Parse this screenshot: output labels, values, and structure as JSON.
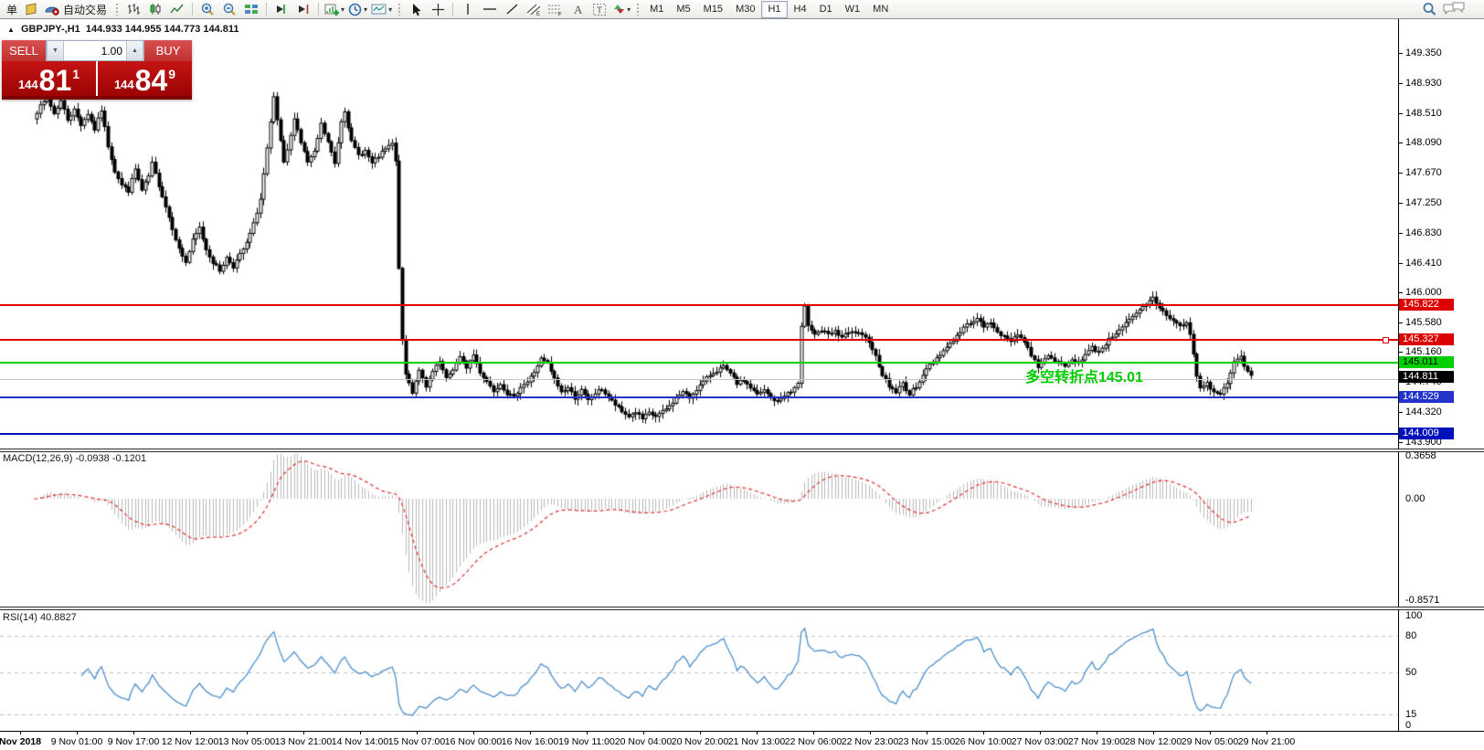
{
  "toolbar": {
    "order_label": "单",
    "autotrading_label": "自动交易",
    "timeframes": [
      "M1",
      "M5",
      "M15",
      "M30",
      "H1",
      "H4",
      "D1",
      "W1",
      "MN"
    ],
    "active_timeframe": "H1",
    "icons": [
      "new-order",
      "autotrading",
      "bar-chart",
      "candlestick-chart",
      "line-chart",
      "zoom-in",
      "zoom-out",
      "tile-windows",
      "auto-scroll",
      "chart-shift",
      "new-chart",
      "periods-clock",
      "templates",
      "cursor",
      "crosshair",
      "vertical-line",
      "horizontal-line",
      "trendline",
      "equidistant-channel",
      "fibonacci-retracement",
      "text",
      "text-label",
      "arrows",
      "search",
      "chat"
    ]
  },
  "chart_header": {
    "title": "GBPJPY-,H1",
    "ohlc": "144.933 144.955 144.773 144.811"
  },
  "trade_panel": {
    "sell_label": "SELL",
    "buy_label": "BUY",
    "volume": "1.00",
    "sell_price": {
      "prefix": "144",
      "big": "81",
      "sup": "1"
    },
    "buy_price": {
      "prefix": "144",
      "big": "84",
      "sup": "9"
    }
  },
  "annotation": {
    "text": "多空转折点145.01",
    "color": "#00cc00"
  },
  "price_axis": {
    "ticks": [
      "149.350",
      "148.930",
      "148.510",
      "148.090",
      "147.670",
      "147.250",
      "146.830",
      "146.410",
      "146.000",
      "145.580",
      "145.160",
      "144.740",
      "144.320",
      "143.900"
    ],
    "tags": [
      {
        "text": "145.822",
        "bg": "#dd0000",
        "fg": "#ffffff"
      },
      {
        "text": "145.327",
        "bg": "#dd0000",
        "fg": "#ffffff"
      },
      {
        "text": "145.011",
        "bg": "#00d000",
        "fg": "#000000"
      },
      {
        "text": "144.811",
        "bg": "#000000",
        "fg": "#ffffff"
      },
      {
        "text": "144.529",
        "bg": "#2233cc",
        "fg": "#ffffff"
      },
      {
        "text": "144.009",
        "bg": "#0011bb",
        "fg": "#ffffff"
      }
    ]
  },
  "macd_panel": {
    "label": "MACD(12,26,9) -0.0938 -0.1201",
    "ticks": [
      {
        "text": "0.3658",
        "v": 0.3658
      },
      {
        "text": "0.00",
        "v": 0
      },
      {
        "text": "-0.8571",
        "v": -0.8571
      }
    ]
  },
  "rsi_panel": {
    "label": "RSI(14) 40.8827",
    "ticks": [
      {
        "text": "100",
        "v": 100
      },
      {
        "text": "80",
        "v": 80
      },
      {
        "text": "50",
        "v": 50
      },
      {
        "text": "15",
        "v": 15
      },
      {
        "text": "0",
        "v": 0
      }
    ],
    "levels": [
      80,
      50,
      15
    ]
  },
  "time_axis": {
    "labels": [
      "Nov 2018",
      "9 Nov 01:00",
      "9 Nov 17:00",
      "12 Nov 12:00",
      "13 Nov 05:00",
      "13 Nov 21:00",
      "14 Nov 14:00",
      "15 Nov 07:00",
      "16 Nov 00:00",
      "16 Nov 16:00",
      "19 Nov 11:00",
      "20 Nov 04:00",
      "20 Nov 20:00",
      "21 Nov 13:00",
      "22 Nov 06:00",
      "22 Nov 23:00",
      "23 Nov 15:00",
      "26 Nov 10:00",
      "27 Nov 03:00",
      "27 Nov 19:00",
      "28 Nov 12:00",
      "29 Nov 05:00",
      "29 Nov 21:00"
    ]
  },
  "chart_data": {
    "type": "candlestick",
    "symbol": "GBPJPY-",
    "timeframe": "H1",
    "ohlc_quote": {
      "open": 144.933,
      "high": 144.955,
      "low": 144.773,
      "close": 144.811
    },
    "y_axis": {
      "min": 143.85,
      "max": 149.84
    },
    "num_candles": 369,
    "h_lines": [
      {
        "price": 145.822,
        "color": "#dd0000",
        "width": 2
      },
      {
        "price": 145.327,
        "color": "#dd0000",
        "width": 2,
        "handle": true
      },
      {
        "price": 145.011,
        "color": "#00d000",
        "width": 2
      },
      {
        "price": 144.78,
        "color": "#c4c4c4",
        "width": 1
      },
      {
        "price": 144.529,
        "color": "#2233cc",
        "width": 2
      },
      {
        "price": 144.009,
        "color": "#0011bb",
        "width": 2
      }
    ],
    "price_anchors": [
      [
        8,
        148.45
      ],
      [
        10,
        148.6
      ],
      [
        12,
        148.72
      ],
      [
        14,
        148.5
      ],
      [
        16,
        148.68
      ],
      [
        18,
        148.42
      ],
      [
        20,
        148.55
      ],
      [
        22,
        148.35
      ],
      [
        24,
        148.5
      ],
      [
        26,
        148.28
      ],
      [
        28,
        148.55
      ],
      [
        30,
        148.05
      ],
      [
        32,
        147.7
      ],
      [
        34,
        147.5
      ],
      [
        36,
        147.42
      ],
      [
        38,
        147.72
      ],
      [
        40,
        147.42
      ],
      [
        42,
        147.62
      ],
      [
        43,
        147.8
      ],
      [
        45,
        147.5
      ],
      [
        47,
        147.2
      ],
      [
        49,
        146.9
      ],
      [
        51,
        146.6
      ],
      [
        53,
        146.42
      ],
      [
        55,
        146.72
      ],
      [
        57,
        146.9
      ],
      [
        59,
        146.6
      ],
      [
        61,
        146.42
      ],
      [
        63,
        146.3
      ],
      [
        65,
        146.48
      ],
      [
        67,
        146.36
      ],
      [
        69,
        146.52
      ],
      [
        71,
        146.68
      ],
      [
        73,
        146.95
      ],
      [
        75,
        147.3
      ],
      [
        77,
        148.0
      ],
      [
        79,
        148.72
      ],
      [
        81,
        148.1
      ],
      [
        82,
        147.8
      ],
      [
        84,
        148.18
      ],
      [
        85,
        148.45
      ],
      [
        87,
        148.1
      ],
      [
        89,
        147.82
      ],
      [
        91,
        147.95
      ],
      [
        93,
        148.35
      ],
      [
        95,
        148.1
      ],
      [
        97,
        147.8
      ],
      [
        99,
        148.4
      ],
      [
        100,
        148.55
      ],
      [
        102,
        148.1
      ],
      [
        104,
        147.92
      ],
      [
        106,
        147.98
      ],
      [
        108,
        147.8
      ],
      [
        110,
        147.9
      ],
      [
        112,
        148.0
      ],
      [
        114,
        148.08
      ],
      [
        115,
        147.82
      ],
      [
        116,
        146.35
      ],
      [
        117,
        145.3
      ],
      [
        118,
        144.85
      ],
      [
        120,
        144.6
      ],
      [
        122,
        144.92
      ],
      [
        124,
        144.65
      ],
      [
        126,
        144.88
      ],
      [
        128,
        145.02
      ],
      [
        130,
        144.78
      ],
      [
        132,
        144.92
      ],
      [
        134,
        145.08
      ],
      [
        136,
        144.95
      ],
      [
        138,
        145.12
      ],
      [
        140,
        144.88
      ],
      [
        142,
        144.75
      ],
      [
        144,
        144.62
      ],
      [
        146,
        144.72
      ],
      [
        148,
        144.58
      ],
      [
        150,
        144.52
      ],
      [
        152,
        144.68
      ],
      [
        154,
        144.74
      ],
      [
        156,
        144.88
      ],
      [
        158,
        145.06
      ],
      [
        160,
        145.0
      ],
      [
        162,
        144.78
      ],
      [
        164,
        144.6
      ],
      [
        166,
        144.66
      ],
      [
        168,
        144.52
      ],
      [
        170,
        144.62
      ],
      [
        172,
        144.48
      ],
      [
        174,
        144.58
      ],
      [
        176,
        144.64
      ],
      [
        178,
        144.52
      ],
      [
        180,
        144.42
      ],
      [
        182,
        144.32
      ],
      [
        184,
        144.26
      ],
      [
        186,
        144.32
      ],
      [
        188,
        144.22
      ],
      [
        190,
        144.3
      ],
      [
        192,
        144.26
      ],
      [
        194,
        144.32
      ],
      [
        196,
        144.4
      ],
      [
        198,
        144.52
      ],
      [
        200,
        144.6
      ],
      [
        202,
        144.52
      ],
      [
        204,
        144.64
      ],
      [
        206,
        144.74
      ],
      [
        208,
        144.84
      ],
      [
        210,
        144.9
      ],
      [
        212,
        144.95
      ],
      [
        214,
        144.85
      ],
      [
        216,
        144.72
      ],
      [
        218,
        144.76
      ],
      [
        220,
        144.66
      ],
      [
        222,
        144.56
      ],
      [
        224,
        144.62
      ],
      [
        226,
        144.52
      ],
      [
        228,
        144.46
      ],
      [
        230,
        144.56
      ],
      [
        232,
        144.6
      ],
      [
        234,
        144.72
      ],
      [
        235,
        145.5
      ],
      [
        236,
        145.78
      ],
      [
        237,
        145.55
      ],
      [
        239,
        145.42
      ],
      [
        241,
        145.46
      ],
      [
        243,
        145.4
      ],
      [
        245,
        145.44
      ],
      [
        247,
        145.37
      ],
      [
        249,
        145.42
      ],
      [
        251,
        145.44
      ],
      [
        253,
        145.38
      ],
      [
        255,
        145.32
      ],
      [
        257,
        145.1
      ],
      [
        259,
        144.85
      ],
      [
        261,
        144.68
      ],
      [
        263,
        144.6
      ],
      [
        265,
        144.72
      ],
      [
        267,
        144.56
      ],
      [
        269,
        144.68
      ],
      [
        271,
        144.84
      ],
      [
        273,
        144.98
      ],
      [
        275,
        145.08
      ],
      [
        277,
        145.18
      ],
      [
        279,
        145.28
      ],
      [
        281,
        145.38
      ],
      [
        283,
        145.5
      ],
      [
        285,
        145.58
      ],
      [
        287,
        145.62
      ],
      [
        289,
        145.52
      ],
      [
        291,
        145.56
      ],
      [
        293,
        145.46
      ],
      [
        295,
        145.36
      ],
      [
        297,
        145.32
      ],
      [
        299,
        145.42
      ],
      [
        301,
        145.3
      ],
      [
        303,
        145.12
      ],
      [
        305,
        144.96
      ],
      [
        307,
        145.08
      ],
      [
        309,
        145.1
      ],
      [
        311,
        145.0
      ],
      [
        313,
        144.96
      ],
      [
        315,
        145.04
      ],
      [
        317,
        145.02
      ],
      [
        319,
        145.12
      ],
      [
        321,
        145.22
      ],
      [
        323,
        145.16
      ],
      [
        325,
        145.28
      ],
      [
        327,
        145.38
      ],
      [
        329,
        145.48
      ],
      [
        331,
        145.56
      ],
      [
        333,
        145.64
      ],
      [
        335,
        145.74
      ],
      [
        337,
        145.82
      ],
      [
        339,
        145.92
      ],
      [
        341,
        145.78
      ],
      [
        343,
        145.68
      ],
      [
        345,
        145.6
      ],
      [
        347,
        145.52
      ],
      [
        349,
        145.56
      ],
      [
        350,
        145.42
      ],
      [
        351,
        145.12
      ],
      [
        352,
        144.82
      ],
      [
        353,
        144.66
      ],
      [
        355,
        144.72
      ],
      [
        357,
        144.6
      ],
      [
        359,
        144.56
      ],
      [
        361,
        144.74
      ],
      [
        363,
        145.0
      ],
      [
        365,
        145.1
      ],
      [
        366,
        144.95
      ],
      [
        367,
        144.9
      ],
      [
        368,
        144.81
      ]
    ],
    "indicators": [
      {
        "name": "MACD",
        "params": [
          12,
          26,
          9
        ],
        "values": [
          -0.0938,
          -0.1201
        ],
        "range": [
          -0.8571,
          0.3658
        ],
        "histogram_color": "#b8b8b8",
        "signal_color": "#e03030"
      },
      {
        "name": "RSI",
        "params": [
          14
        ],
        "value": 40.8827,
        "levels": [
          80,
          50,
          15
        ],
        "line_color": "#4d8fcc"
      }
    ]
  }
}
